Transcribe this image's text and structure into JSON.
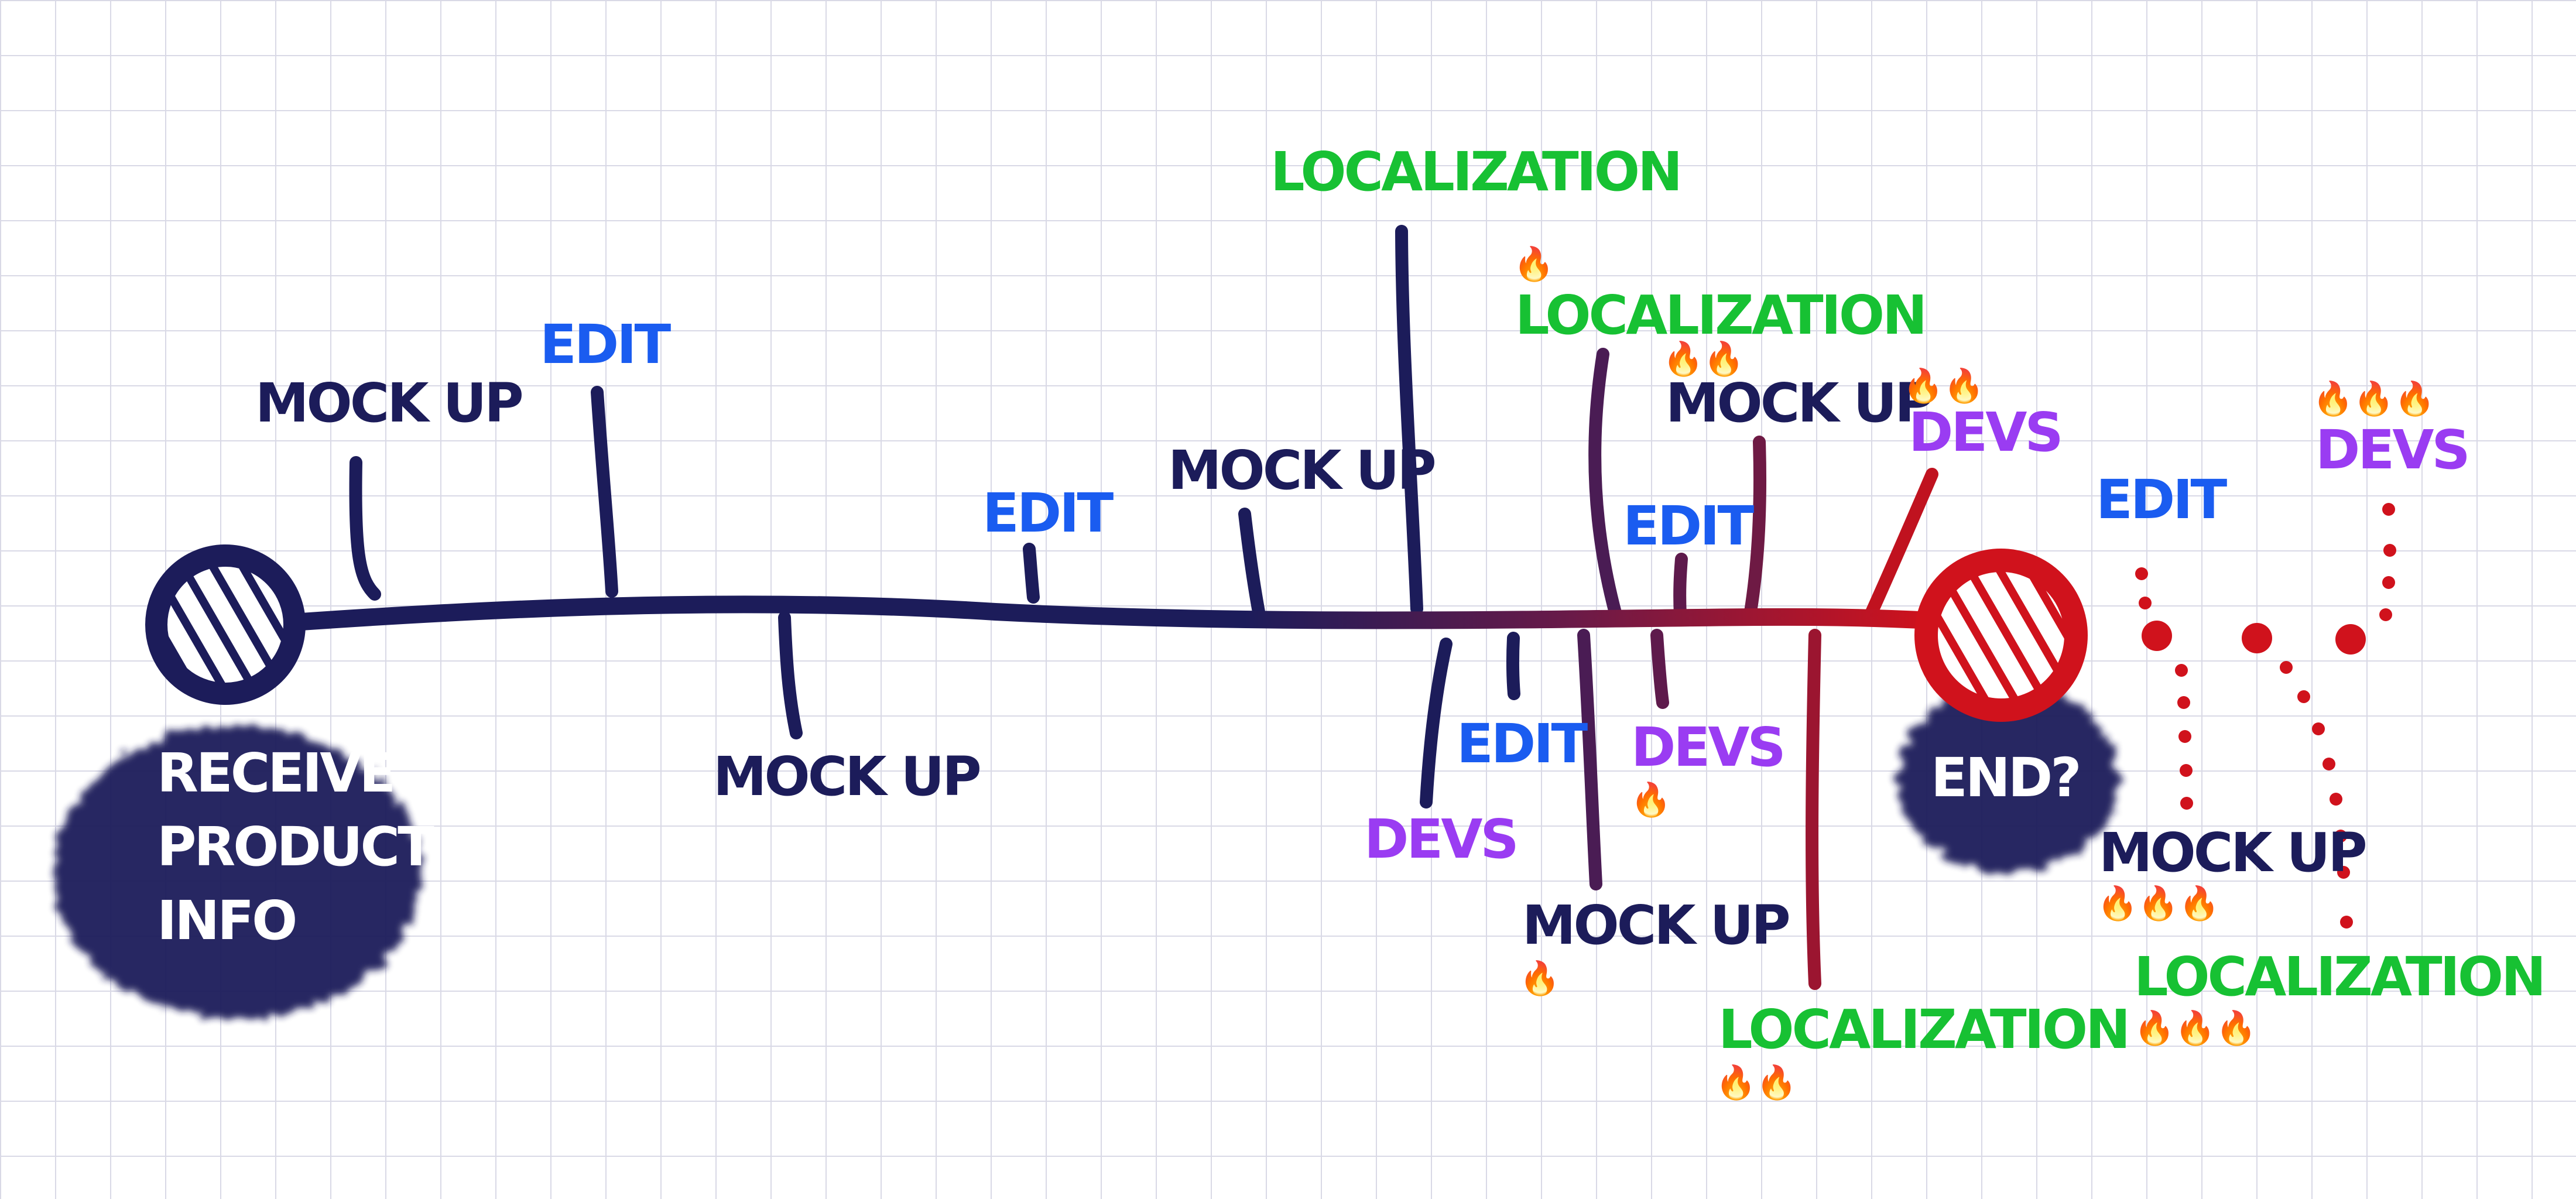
{
  "start_node": {
    "lines": [
      "RECEIVE",
      "PRODUCT",
      "INFO"
    ]
  },
  "end_node": {
    "label": "END?"
  },
  "labels": {
    "mockup_1": "MOCK UP",
    "edit_1": "EDIT",
    "mockup_2": "MOCK UP",
    "edit_2": "EDIT",
    "mockup_3": "MOCK UP",
    "localization_1": "LOCALIZATION",
    "devs_1": "DEVS",
    "edit_3": "EDIT",
    "localization_2": "LOCALIZATION",
    "mockup_4": "MOCK UP",
    "mockup_5": "MOCK UP",
    "edit_4": "EDIT",
    "devs_2": "DEVS",
    "devs_3": "DEVS",
    "localization_3": "LOCALIZATION",
    "edit_5": "EDIT",
    "devs_4": "DEVS",
    "mockup_6": "MOCK UP",
    "localization_4": "LOCALIZATION"
  },
  "fire_marks": {
    "localization_2": "🔥",
    "mockup_5": "🔥🔥",
    "devs_3": "🔥🔥",
    "devs_2": "🔥",
    "mockup_4": "🔥",
    "localization_3": "🔥🔥",
    "devs_4": "🔥🔥🔥",
    "mockup_6": "🔥🔥🔥",
    "localization_4": "🔥🔥🔥"
  },
  "colors": {
    "background": "#ffffff",
    "grid": "#d9d9e6",
    "navy": "#1c1c5a",
    "red": "#d0121c",
    "edit": "#1a5cf0",
    "localization": "#17c133",
    "devs": "#9a3cf2",
    "mockup": "#1c1c5a",
    "label_on_dark": "#ffffff"
  }
}
